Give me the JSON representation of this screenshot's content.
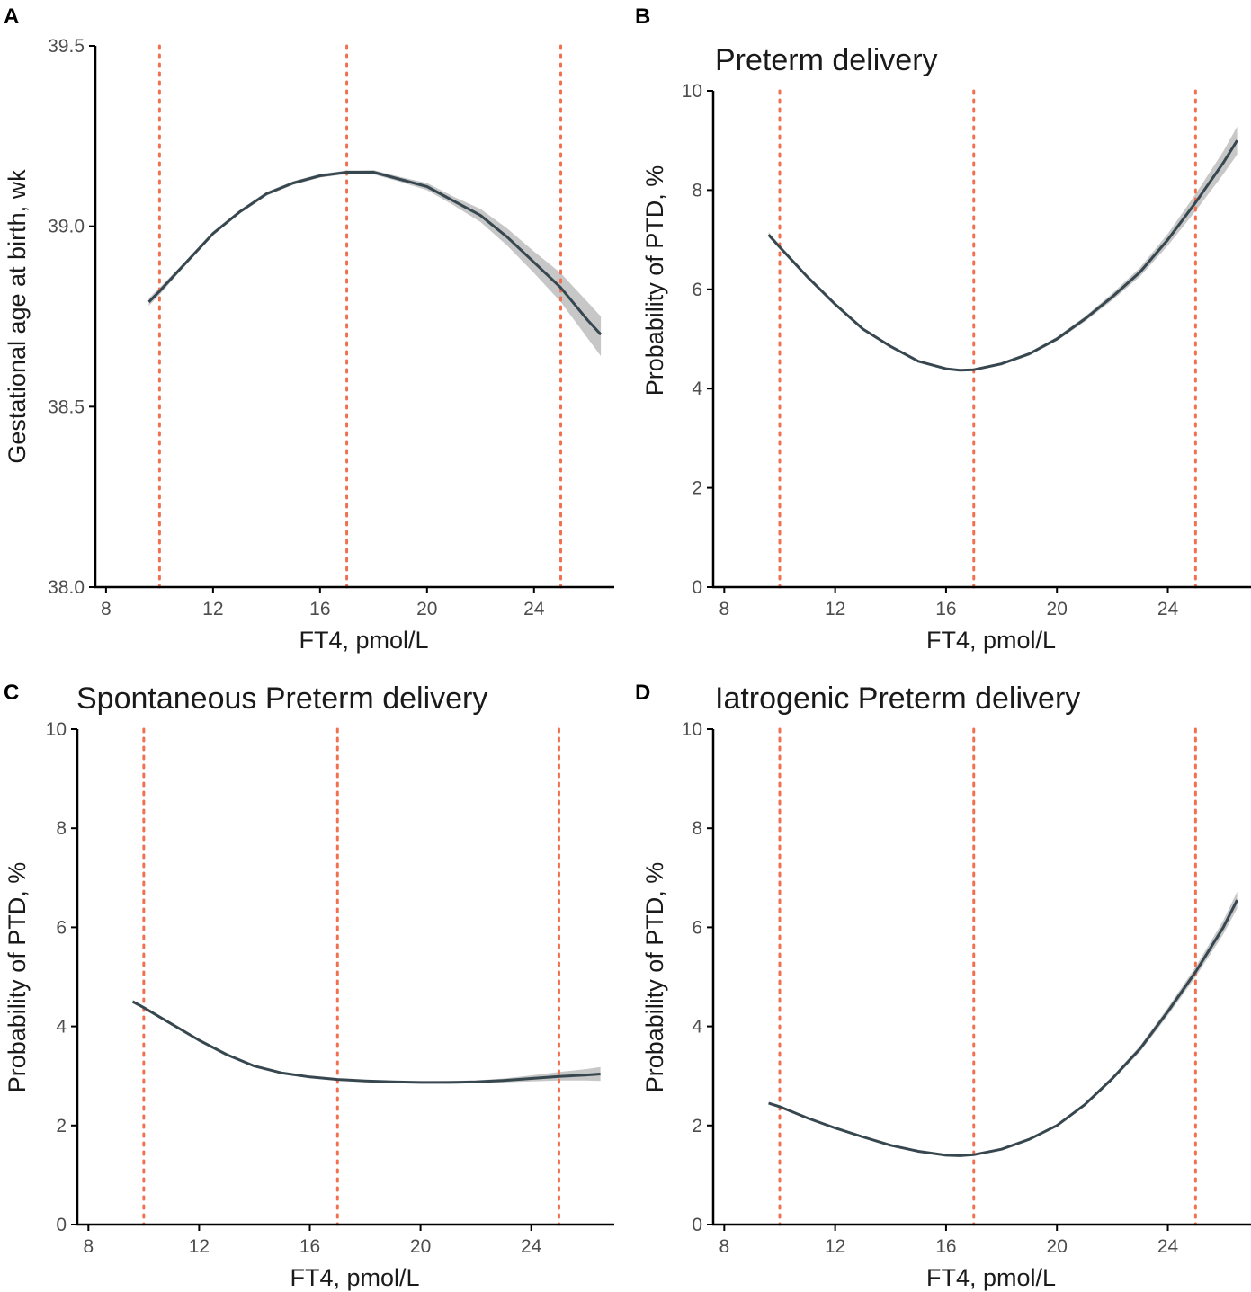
{
  "chart_data": [
    {
      "panel_label": "A",
      "type": "line",
      "title": "",
      "xlabel": "FT4, pmol/L",
      "ylabel": "Gestational age at birth, wk",
      "xlim": [
        7.6,
        27.0
      ],
      "ylim": [
        38.0,
        39.5
      ],
      "xticks": [
        8,
        12,
        16,
        20,
        24
      ],
      "yticks": [
        38.0,
        38.5,
        39.0,
        39.5
      ],
      "ytick_labels": [
        "38.0",
        "38.5",
        "39.0",
        "39.5"
      ],
      "reference_lines_x": [
        10.0,
        17.0,
        25.0
      ],
      "series": [
        {
          "name": "fit",
          "x": [
            9.6,
            10.0,
            11.0,
            12.0,
            13.0,
            14.0,
            15.0,
            16.0,
            17.0,
            17.4,
            18.0,
            19.0,
            20.0,
            21.0,
            22.0,
            23.0,
            24.0,
            25.0,
            26.0,
            26.5
          ],
          "y": [
            38.79,
            38.82,
            38.9,
            38.98,
            39.04,
            39.09,
            39.12,
            39.14,
            39.15,
            39.15,
            39.15,
            39.13,
            39.11,
            39.07,
            39.03,
            38.97,
            38.9,
            38.83,
            38.74,
            38.7
          ],
          "lower": [
            38.78,
            38.81,
            38.895,
            38.975,
            39.035,
            39.085,
            39.115,
            39.135,
            39.145,
            39.145,
            39.144,
            39.123,
            39.1,
            39.058,
            39.012,
            38.946,
            38.87,
            38.79,
            38.69,
            38.64
          ],
          "upper": [
            38.8,
            38.83,
            38.905,
            38.985,
            39.045,
            39.095,
            39.125,
            39.145,
            39.155,
            39.155,
            39.156,
            39.137,
            39.12,
            39.082,
            39.048,
            38.994,
            38.93,
            38.87,
            38.79,
            38.75
          ]
        }
      ]
    },
    {
      "panel_label": "B",
      "type": "line",
      "title": "Preterm delivery",
      "xlabel": "FT4, pmol/L",
      "ylabel": "Probability of PTD, %",
      "xlim": [
        7.6,
        27.0
      ],
      "ylim": [
        0,
        10
      ],
      "xticks": [
        8,
        12,
        16,
        20,
        24
      ],
      "yticks": [
        0,
        2,
        4,
        6,
        8,
        10
      ],
      "ytick_labels": [
        "0",
        "2",
        "4",
        "6",
        "8",
        "10"
      ],
      "reference_lines_x": [
        10.0,
        17.0,
        25.0
      ],
      "series": [
        {
          "name": "fit",
          "x": [
            9.6,
            10.0,
            11.0,
            12.0,
            13.0,
            14.0,
            15.0,
            16.0,
            16.5,
            17.0,
            18.0,
            19.0,
            20.0,
            21.0,
            22.0,
            23.0,
            24.0,
            25.0,
            26.0,
            26.5
          ],
          "y": [
            7.1,
            6.85,
            6.25,
            5.7,
            5.2,
            4.85,
            4.55,
            4.4,
            4.37,
            4.38,
            4.5,
            4.7,
            5.0,
            5.4,
            5.85,
            6.35,
            7.0,
            7.75,
            8.55,
            9.0
          ],
          "lower": [
            7.05,
            6.81,
            6.22,
            5.67,
            5.18,
            4.83,
            4.53,
            4.38,
            4.35,
            4.36,
            4.48,
            4.67,
            4.96,
            5.35,
            5.78,
            6.26,
            6.88,
            7.58,
            8.32,
            8.72
          ],
          "upper": [
            7.15,
            6.89,
            6.28,
            5.73,
            5.22,
            4.87,
            4.57,
            4.42,
            4.39,
            4.4,
            4.52,
            4.73,
            5.04,
            5.45,
            5.92,
            6.44,
            7.12,
            7.92,
            8.78,
            9.28
          ]
        }
      ]
    },
    {
      "panel_label": "C",
      "type": "line",
      "title": "Spontaneous Preterm delivery",
      "xlabel": "FT4, pmol/L",
      "ylabel": "Probability of PTD, %",
      "xlim": [
        7.6,
        27.0
      ],
      "ylim": [
        0,
        10
      ],
      "xticks": [
        8,
        12,
        16,
        20,
        24
      ],
      "yticks": [
        0,
        2,
        4,
        6,
        8,
        10
      ],
      "ytick_labels": [
        "0",
        "2",
        "4",
        "6",
        "8",
        "10"
      ],
      "reference_lines_x": [
        10.0,
        17.0,
        25.0
      ],
      "series": [
        {
          "name": "fit",
          "x": [
            9.6,
            10.0,
            11.0,
            12.0,
            13.0,
            14.0,
            15.0,
            16.0,
            17.0,
            18.0,
            19.0,
            20.0,
            21.0,
            22.0,
            23.0,
            24.0,
            25.0,
            26.0,
            26.5
          ],
          "y": [
            4.5,
            4.38,
            4.05,
            3.72,
            3.43,
            3.2,
            3.06,
            2.98,
            2.93,
            2.9,
            2.88,
            2.87,
            2.87,
            2.88,
            2.91,
            2.95,
            2.99,
            3.02,
            3.04
          ],
          "lower": [
            4.47,
            4.35,
            4.02,
            3.7,
            3.41,
            3.18,
            3.04,
            2.96,
            2.91,
            2.88,
            2.86,
            2.85,
            2.85,
            2.85,
            2.87,
            2.89,
            2.91,
            2.91,
            2.9
          ],
          "upper": [
            4.53,
            4.41,
            4.08,
            3.74,
            3.45,
            3.22,
            3.08,
            3.0,
            2.95,
            2.92,
            2.9,
            2.89,
            2.9,
            2.91,
            2.95,
            3.01,
            3.08,
            3.14,
            3.18
          ]
        }
      ]
    },
    {
      "panel_label": "D",
      "type": "line",
      "title": "Iatrogenic Preterm delivery",
      "xlabel": "FT4, pmol/L",
      "ylabel": "Probability of PTD, %",
      "xlim": [
        7.6,
        27.0
      ],
      "ylim": [
        0,
        10
      ],
      "xticks": [
        8,
        12,
        16,
        20,
        24
      ],
      "yticks": [
        0,
        2,
        4,
        6,
        8,
        10
      ],
      "ytick_labels": [
        "0",
        "2",
        "4",
        "6",
        "8",
        "10"
      ],
      "reference_lines_x": [
        10.0,
        17.0,
        25.0
      ],
      "series": [
        {
          "name": "fit",
          "x": [
            9.6,
            10.0,
            11.0,
            12.0,
            13.0,
            14.0,
            15.0,
            16.0,
            16.5,
            17.0,
            18.0,
            19.0,
            20.0,
            21.0,
            22.0,
            23.0,
            24.0,
            25.0,
            26.0,
            26.5
          ],
          "y": [
            2.45,
            2.38,
            2.15,
            1.95,
            1.77,
            1.6,
            1.48,
            1.4,
            1.39,
            1.41,
            1.52,
            1.72,
            2.0,
            2.42,
            2.95,
            3.55,
            4.3,
            5.1,
            6.0,
            6.55
          ],
          "lower": [
            2.42,
            2.35,
            2.13,
            1.93,
            1.75,
            1.59,
            1.47,
            1.39,
            1.38,
            1.4,
            1.51,
            1.71,
            1.98,
            2.39,
            2.91,
            3.49,
            4.22,
            5.0,
            5.86,
            6.38
          ],
          "upper": [
            2.48,
            2.41,
            2.17,
            1.97,
            1.79,
            1.61,
            1.49,
            1.41,
            1.4,
            1.42,
            1.53,
            1.73,
            2.02,
            2.45,
            2.99,
            3.61,
            4.38,
            5.2,
            6.14,
            6.72
          ]
        }
      ]
    }
  ],
  "colors": {
    "fit_line": "#37474f",
    "ci_band": "#bdbdbd",
    "reference_line": "#f07050",
    "axis": "#000000",
    "tick_text": "#4d4d4d"
  }
}
